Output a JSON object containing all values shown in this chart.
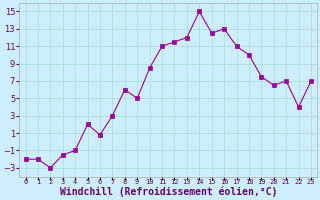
{
  "x": [
    0,
    1,
    2,
    3,
    4,
    5,
    6,
    7,
    8,
    9,
    10,
    11,
    12,
    13,
    14,
    15,
    16,
    17,
    18,
    19,
    20,
    21,
    22,
    23
  ],
  "y": [
    -2.0,
    -2.0,
    -3.0,
    -1.5,
    -1.0,
    2.0,
    0.8,
    3.0,
    6.0,
    5.0,
    8.5,
    11.0,
    11.5,
    12.0,
    15.0,
    12.5,
    13.0,
    11.0,
    10.0,
    7.5,
    6.5,
    7.0,
    4.0,
    7.0
  ],
  "line_color": "#990099",
  "marker_color": "#990099",
  "bg_color": "#cceeff",
  "grid_color": "#aaddcc",
  "xlabel": "Windchill (Refroidissement éolien,°C)",
  "xlabel_fontsize": 7,
  "ylabel_ticks": [
    -3,
    -1,
    1,
    3,
    5,
    7,
    9,
    11,
    13,
    15
  ],
  "xtick_labels": [
    "0",
    "1",
    "2",
    "3",
    "4",
    "5",
    "6",
    "7",
    "8",
    "9",
    "10",
    "11",
    "12",
    "13",
    "14",
    "15",
    "16",
    "17",
    "18",
    "19",
    "20",
    "21",
    "22",
    "23"
  ],
  "ylim": [
    -4,
    16
  ],
  "xlim": [
    -0.5,
    23.5
  ],
  "ytick_fontsize": 6,
  "xtick_fontsize": 5
}
